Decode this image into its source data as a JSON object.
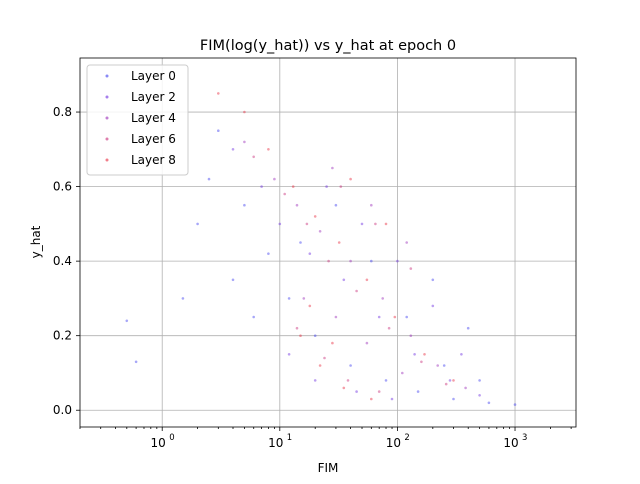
{
  "chart_data": {
    "type": "scatter",
    "title": "FIM(log(y_hat)) vs y_hat at epoch 0",
    "xlabel": "FIM",
    "ylabel": "y_hat",
    "x_scale": "log",
    "xlim": [
      0.2,
      3300
    ],
    "ylim": [
      -0.045,
      0.945
    ],
    "grid": true,
    "legend_position": "top-left",
    "x_ticks": [
      {
        "value": 1,
        "base": "10",
        "exp": "0"
      },
      {
        "value": 10,
        "base": "10",
        "exp": "1"
      },
      {
        "value": 100,
        "base": "10",
        "exp": "2"
      },
      {
        "value": 1000,
        "base": "10",
        "exp": "3"
      }
    ],
    "y_ticks": [
      {
        "value": 0.0,
        "label": "0.0"
      },
      {
        "value": 0.2,
        "label": "0.2"
      },
      {
        "value": 0.4,
        "label": "0.4"
      },
      {
        "value": 0.6,
        "label": "0.6"
      },
      {
        "value": 0.8,
        "label": "0.8"
      }
    ],
    "series": [
      {
        "name": "Layer 0",
        "color": "#3c3cf0",
        "points": [
          [
            3,
            0.75
          ],
          [
            5,
            0.55
          ],
          [
            8,
            0.42
          ],
          [
            12,
            0.3
          ],
          [
            20,
            0.2
          ],
          [
            40,
            0.12
          ],
          [
            80,
            0.08
          ],
          [
            150,
            0.05
          ],
          [
            300,
            0.03
          ],
          [
            600,
            0.02
          ],
          [
            1000,
            0.015
          ],
          [
            2,
            0.5
          ],
          [
            4,
            0.35
          ],
          [
            6,
            0.25
          ],
          [
            15,
            0.45
          ],
          [
            30,
            0.55
          ],
          [
            60,
            0.4
          ],
          [
            120,
            0.25
          ],
          [
            250,
            0.12
          ],
          [
            500,
            0.08
          ],
          [
            0.5,
            0.24
          ],
          [
            0.6,
            0.13
          ],
          [
            1.5,
            0.3
          ],
          [
            2.5,
            0.62
          ],
          [
            200,
            0.35
          ],
          [
            400,
            0.22
          ]
        ]
      },
      {
        "name": "Layer 2",
        "color": "#6a2ae0",
        "points": [
          [
            4,
            0.7
          ],
          [
            7,
            0.6
          ],
          [
            10,
            0.5
          ],
          [
            18,
            0.42
          ],
          [
            35,
            0.35
          ],
          [
            70,
            0.25
          ],
          [
            140,
            0.15
          ],
          [
            280,
            0.08
          ],
          [
            500,
            0.04
          ],
          [
            25,
            0.6
          ],
          [
            50,
            0.5
          ],
          [
            100,
            0.4
          ],
          [
            200,
            0.28
          ],
          [
            350,
            0.15
          ],
          [
            12,
            0.15
          ],
          [
            20,
            0.08
          ],
          [
            45,
            0.05
          ],
          [
            90,
            0.03
          ]
        ]
      },
      {
        "name": "Layer 4",
        "color": "#9a2ab8",
        "points": [
          [
            5,
            0.72
          ],
          [
            9,
            0.62
          ],
          [
            14,
            0.55
          ],
          [
            22,
            0.48
          ],
          [
            40,
            0.4
          ],
          [
            75,
            0.3
          ],
          [
            130,
            0.2
          ],
          [
            220,
            0.12
          ],
          [
            380,
            0.06
          ],
          [
            30,
            0.25
          ],
          [
            55,
            0.18
          ],
          [
            110,
            0.1
          ],
          [
            16,
            0.3
          ],
          [
            28,
            0.65
          ],
          [
            60,
            0.55
          ],
          [
            120,
            0.45
          ]
        ]
      },
      {
        "name": "Layer 6",
        "color": "#c82a78",
        "points": [
          [
            6,
            0.68
          ],
          [
            11,
            0.58
          ],
          [
            17,
            0.5
          ],
          [
            26,
            0.4
          ],
          [
            45,
            0.32
          ],
          [
            85,
            0.22
          ],
          [
            160,
            0.13
          ],
          [
            260,
            0.07
          ],
          [
            14,
            0.22
          ],
          [
            24,
            0.14
          ],
          [
            38,
            0.08
          ],
          [
            70,
            0.05
          ],
          [
            33,
            0.6
          ],
          [
            65,
            0.5
          ],
          [
            130,
            0.38
          ]
        ]
      },
      {
        "name": "Layer 8",
        "color": "#e8283c",
        "points": [
          [
            5,
            0.8
          ],
          [
            8,
            0.7
          ],
          [
            13,
            0.6
          ],
          [
            20,
            0.52
          ],
          [
            32,
            0.45
          ],
          [
            55,
            0.35
          ],
          [
            95,
            0.25
          ],
          [
            170,
            0.15
          ],
          [
            300,
            0.08
          ],
          [
            15,
            0.2
          ],
          [
            22,
            0.12
          ],
          [
            35,
            0.06
          ],
          [
            60,
            0.03
          ],
          [
            18,
            0.28
          ],
          [
            28,
            0.18
          ],
          [
            3,
            0.85
          ],
          [
            40,
            0.62
          ],
          [
            80,
            0.5
          ]
        ]
      }
    ]
  }
}
